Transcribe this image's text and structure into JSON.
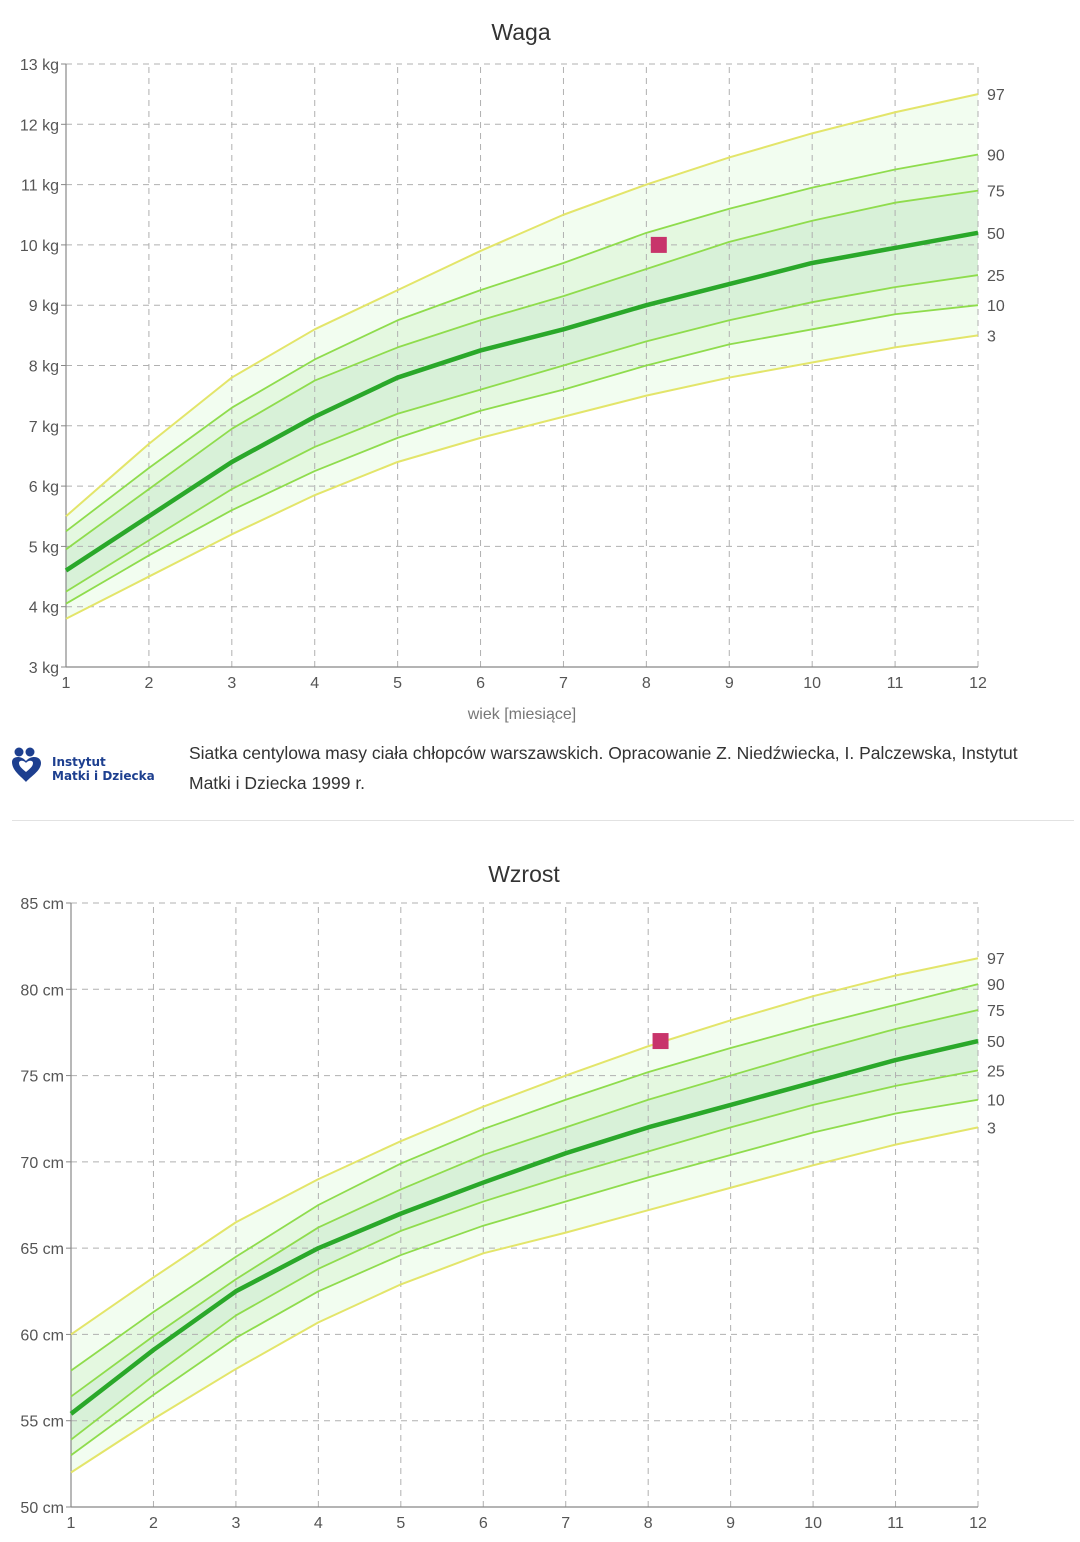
{
  "chart_data": [
    {
      "type": "line",
      "title": "Waga",
      "xlabel": "wiek [miesiące]",
      "ylabel": "",
      "xlim": [
        1,
        12
      ],
      "ylim": [
        3,
        13
      ],
      "grid": true,
      "x": [
        1,
        2,
        3,
        4,
        5,
        6,
        7,
        8,
        9,
        10,
        11,
        12
      ],
      "x_tick_labels": [
        "1",
        "2",
        "3",
        "4",
        "5",
        "6",
        "7",
        "8",
        "9",
        "10",
        "11",
        "12"
      ],
      "y_ticks": [
        3,
        4,
        5,
        6,
        7,
        8,
        9,
        10,
        11,
        12,
        13
      ],
      "y_tick_labels": [
        "3 kg",
        "4 kg",
        "5 kg",
        "6 kg",
        "7 kg",
        "8 kg",
        "9 kg",
        "10 kg",
        "11 kg",
        "12 kg",
        "13 kg"
      ],
      "series": [
        {
          "name": "97",
          "values": [
            5.5,
            6.7,
            7.8,
            8.6,
            9.25,
            9.9,
            10.5,
            11.0,
            11.45,
            11.85,
            12.2,
            12.5
          ]
        },
        {
          "name": "90",
          "values": [
            5.25,
            6.3,
            7.3,
            8.1,
            8.75,
            9.25,
            9.7,
            10.2,
            10.6,
            10.95,
            11.25,
            11.5
          ]
        },
        {
          "name": "75",
          "values": [
            4.95,
            5.95,
            6.95,
            7.75,
            8.3,
            8.75,
            9.15,
            9.6,
            10.05,
            10.4,
            10.7,
            10.9
          ]
        },
        {
          "name": "50",
          "values": [
            4.6,
            5.5,
            6.4,
            7.15,
            7.8,
            8.25,
            8.6,
            9.0,
            9.35,
            9.7,
            9.95,
            10.2
          ]
        },
        {
          "name": "25",
          "values": [
            4.25,
            5.1,
            5.95,
            6.65,
            7.2,
            7.6,
            8.0,
            8.4,
            8.75,
            9.05,
            9.3,
            9.5
          ]
        },
        {
          "name": "10",
          "values": [
            4.05,
            4.85,
            5.6,
            6.25,
            6.8,
            7.25,
            7.6,
            8.0,
            8.35,
            8.6,
            8.85,
            9.0
          ]
        },
        {
          "name": "3",
          "values": [
            3.8,
            4.5,
            5.2,
            5.85,
            6.4,
            6.8,
            7.15,
            7.5,
            7.8,
            8.05,
            8.3,
            8.5
          ]
        }
      ],
      "measurements": [
        {
          "x": 8.15,
          "y": 10.0
        }
      ],
      "colors": {
        "outer_line": "#e3e56a",
        "inner_line": "#8fdc4d",
        "median": "#2aa82a",
        "band_outer": "#f2fdf0",
        "band_mid": "#e4f8e0",
        "band_inner": "#d8f1d8",
        "marker": "#c8346b"
      }
    },
    {
      "type": "line",
      "title": "Wzrost",
      "xlabel": "",
      "ylabel": "",
      "xlim": [
        1,
        12
      ],
      "ylim": [
        50,
        85
      ],
      "grid": true,
      "x": [
        1,
        2,
        3,
        4,
        5,
        6,
        7,
        8,
        9,
        10,
        11,
        12
      ],
      "x_tick_labels": [
        "1",
        "2",
        "3",
        "4",
        "5",
        "6",
        "7",
        "8",
        "9",
        "10",
        "11",
        "12"
      ],
      "y_ticks": [
        50,
        55,
        60,
        65,
        70,
        75,
        80,
        85
      ],
      "y_tick_labels": [
        "50 cm",
        "55 cm",
        "60 cm",
        "65 cm",
        "70 cm",
        "75 cm",
        "80 cm",
        "85 cm"
      ],
      "series": [
        {
          "name": "97",
          "values": [
            60.0,
            63.3,
            66.5,
            69.0,
            71.2,
            73.2,
            75.0,
            76.7,
            78.2,
            79.6,
            80.8,
            81.8
          ]
        },
        {
          "name": "90",
          "values": [
            57.9,
            61.3,
            64.5,
            67.5,
            69.9,
            71.9,
            73.6,
            75.2,
            76.6,
            77.9,
            79.1,
            80.3
          ]
        },
        {
          "name": "75",
          "values": [
            56.4,
            59.9,
            63.2,
            66.2,
            68.4,
            70.4,
            72.0,
            73.6,
            75.0,
            76.4,
            77.7,
            78.8
          ]
        },
        {
          "name": "50",
          "values": [
            55.4,
            59.1,
            62.5,
            65.0,
            67.0,
            68.8,
            70.5,
            72.0,
            73.3,
            74.6,
            75.9,
            77.0
          ]
        },
        {
          "name": "25",
          "values": [
            53.9,
            57.6,
            61.1,
            63.8,
            66.0,
            67.7,
            69.2,
            70.6,
            72.0,
            73.3,
            74.4,
            75.3
          ]
        },
        {
          "name": "10",
          "values": [
            53.0,
            56.5,
            59.8,
            62.5,
            64.6,
            66.3,
            67.7,
            69.1,
            70.4,
            71.7,
            72.8,
            73.6
          ]
        },
        {
          "name": "3",
          "values": [
            52.0,
            55.1,
            58.0,
            60.7,
            62.9,
            64.7,
            65.9,
            67.2,
            68.5,
            69.8,
            71.0,
            72.0
          ]
        }
      ],
      "measurements": [
        {
          "x": 8.15,
          "y": 77.0
        }
      ],
      "colors": {
        "outer_line": "#e3e56a",
        "inner_line": "#8fdc4d",
        "median": "#2aa82a",
        "band_outer": "#f2fdf0",
        "band_mid": "#e4f8e0",
        "band_inner": "#d8f1d8",
        "marker": "#c8346b"
      }
    }
  ],
  "source": {
    "logo_line1": "Instytut",
    "logo_line2": "Matki i Dziecka",
    "caption": "Siatka centylowa masy ciała chłopców warszawskich. Opracowanie Z. Niedźwiecka, I. Palczewska, Instytut Matki i Dziecka 1999 r."
  }
}
